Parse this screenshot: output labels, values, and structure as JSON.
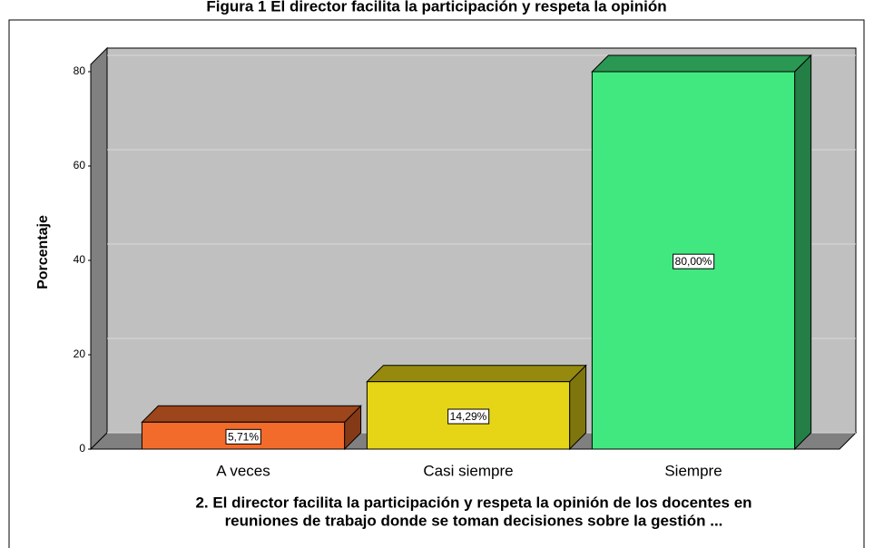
{
  "chart_data": {
    "type": "bar3d",
    "title": "Figura 1 El director facilita la participación y respeta la opinión",
    "y_label": "Porcentaje",
    "x_label": [
      "2. El director facilita la participación y respeta la opinión de los docentes en",
      "reuniones de trabajo donde se toman decisiones sobre la gestión ..."
    ],
    "categories": [
      "A veces",
      "Casi siempre",
      "Siempre"
    ],
    "values": [
      5.71,
      14.29,
      80
    ],
    "value_labels": [
      "5,71%",
      "14,29%",
      "80,00%"
    ],
    "colors": [
      "#f26b2a",
      "#e5d516",
      "#41e880"
    ],
    "ylim": [
      0,
      80
    ],
    "yticks": [
      0,
      20,
      40,
      60,
      80
    ],
    "grid": true
  }
}
